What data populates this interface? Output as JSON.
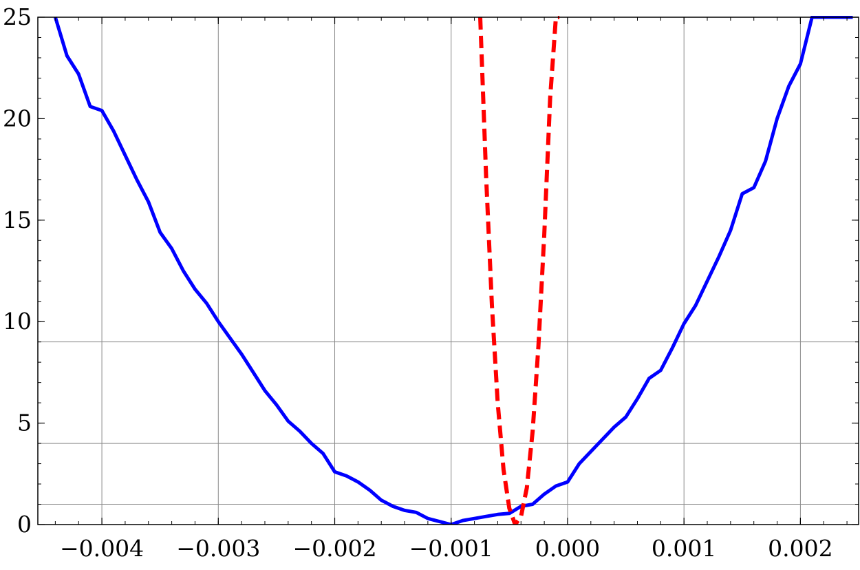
{
  "chart_data": {
    "type": "line",
    "title": "",
    "xlabel": "",
    "ylabel": "",
    "xlim": [
      -0.00455,
      0.0025
    ],
    "ylim": [
      0,
      25
    ],
    "x_ticks": [
      -0.004,
      -0.003,
      -0.002,
      -0.001,
      0.0,
      0.001,
      0.002
    ],
    "x_tick_labels": [
      "−0.004",
      "−0.003",
      "−0.002",
      "−0.001",
      "0.000",
      "0.001",
      "0.002"
    ],
    "y_ticks": [
      0,
      5,
      10,
      15,
      20,
      25
    ],
    "y_tick_labels": [
      "0",
      "5",
      "10",
      "15",
      "20",
      "25"
    ],
    "reference_lines_y": [
      1,
      4,
      9
    ],
    "grid": "vertical at x ticks",
    "legend": "none",
    "series": [
      {
        "style": "solid",
        "color": "#0000ff",
        "x": [
          -0.0044,
          -0.0043,
          -0.0042,
          -0.0041,
          -0.004,
          -0.0039,
          -0.0038,
          -0.0037,
          -0.0036,
          -0.0035,
          -0.0034,
          -0.0033,
          -0.0032,
          -0.0031,
          -0.003,
          -0.0029,
          -0.0028,
          -0.0027,
          -0.0026,
          -0.0025,
          -0.0024,
          -0.0023,
          -0.0022,
          -0.0021,
          -0.002,
          -0.0019,
          -0.0018,
          -0.0017,
          -0.0016,
          -0.0015,
          -0.0014,
          -0.0013,
          -0.0012,
          -0.0011,
          -0.001,
          -0.0009,
          -0.0008,
          -0.0007,
          -0.0006,
          -0.0005,
          -0.0004,
          -0.0003,
          -0.0002,
          -0.0001,
          0.0,
          0.0001,
          0.0002,
          0.0003,
          0.0004,
          0.0005,
          0.0006,
          0.0007,
          0.0008,
          0.0009,
          0.001,
          0.0011,
          0.0012,
          0.0013,
          0.0014,
          0.0015,
          0.0016,
          0.0017,
          0.0018,
          0.0019,
          0.002,
          0.0021,
          0.0022,
          0.00245
        ],
        "y": [
          25.0,
          23.1,
          22.2,
          20.6,
          20.4,
          19.4,
          18.2,
          17.0,
          15.9,
          14.4,
          13.6,
          12.5,
          11.6,
          10.9,
          10.0,
          9.2,
          8.4,
          7.5,
          6.6,
          5.9,
          5.1,
          4.6,
          4.0,
          3.5,
          2.6,
          2.4,
          2.1,
          1.7,
          1.2,
          0.9,
          0.7,
          0.6,
          0.3,
          0.15,
          0.0,
          0.2,
          0.3,
          0.4,
          0.5,
          0.55,
          0.9,
          1.0,
          1.5,
          1.9,
          2.1,
          3.0,
          3.6,
          4.2,
          4.8,
          5.3,
          6.2,
          7.2,
          7.6,
          8.7,
          9.9,
          10.8,
          12.0,
          13.2,
          14.5,
          16.3,
          16.6,
          17.9,
          20.0,
          21.6,
          22.7,
          25.0,
          25.0,
          25.0
        ]
      },
      {
        "style": "dashed",
        "color": "#ff0000",
        "x": [
          -0.00075,
          -0.0007,
          -0.00065,
          -0.0006,
          -0.00055,
          -0.0005,
          -0.00045,
          -0.0004,
          -0.00035,
          -0.0003,
          -0.00025,
          -0.0002,
          -0.00015,
          -0.0001,
          -7e-05
        ],
        "y": [
          25.0,
          17.2,
          10.8,
          6.0,
          2.7,
          0.8,
          0.0,
          0.4,
          1.8,
          4.6,
          8.8,
          14.3,
          21.0,
          25.0,
          25.0
        ]
      }
    ]
  }
}
